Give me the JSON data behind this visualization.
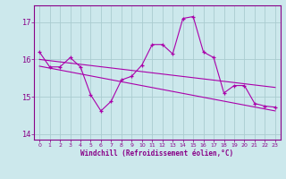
{
  "x": [
    0,
    1,
    2,
    3,
    4,
    5,
    6,
    7,
    8,
    9,
    10,
    11,
    12,
    13,
    14,
    15,
    16,
    17,
    18,
    19,
    20,
    21,
    22,
    23
  ],
  "y_data": [
    16.2,
    15.8,
    15.8,
    16.05,
    15.8,
    15.05,
    14.62,
    14.88,
    15.45,
    15.55,
    15.85,
    16.4,
    16.4,
    16.15,
    17.1,
    17.15,
    16.2,
    16.05,
    15.1,
    15.3,
    15.3,
    14.82,
    14.75,
    14.72
  ],
  "trend1_x": [
    0,
    23
  ],
  "trend1_y": [
    16.0,
    15.25
  ],
  "trend2_x": [
    0,
    23
  ],
  "trend2_y": [
    15.82,
    14.62
  ],
  "line_color": "#aa00aa",
  "bg_color": "#cce8ec",
  "grid_color": "#aaccd0",
  "axis_color": "#880088",
  "xlabel": "Windchill (Refroidissement éolien,°C)",
  "ylim": [
    13.85,
    17.45
  ],
  "xlim": [
    -0.5,
    23.5
  ],
  "yticks": [
    14,
    15,
    16,
    17
  ],
  "xticks": [
    0,
    1,
    2,
    3,
    4,
    5,
    6,
    7,
    8,
    9,
    10,
    11,
    12,
    13,
    14,
    15,
    16,
    17,
    18,
    19,
    20,
    21,
    22,
    23
  ]
}
